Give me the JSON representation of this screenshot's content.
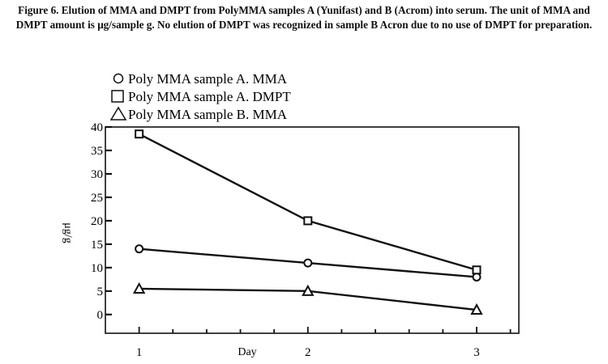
{
  "figure": {
    "caption": "Figure 6. Elution of MMA and DMPT from PolyMMA samples A (Yunifast) and B (Acrom) into serum. The unit of MMA and DMPT amount is μg/sample g. No elution of DMPT was recognized in sample B Acron due to no use of DMPT for preparation."
  },
  "chart_data": {
    "type": "line",
    "xlabel": "Day",
    "ylabel": "μg/g",
    "x": [
      1,
      2,
      3
    ],
    "x_ticks": [
      "1",
      "2",
      "3"
    ],
    "xlim": [
      0.8,
      3.25
    ],
    "ylim": [
      -4,
      40
    ],
    "y_ticks": [
      "0",
      "5",
      "10",
      "15",
      "20",
      "25",
      "30",
      "35",
      "40"
    ],
    "legend_position": "top-left",
    "grid": false,
    "series": [
      {
        "name": "Poly MMA sample A. MMA",
        "marker": "circle",
        "values": [
          14,
          11,
          8
        ]
      },
      {
        "name": "Poly MMA sample A. DMPT",
        "marker": "square",
        "values": [
          38.5,
          20,
          9.5
        ]
      },
      {
        "name": "Poly MMA sample B. MMA",
        "marker": "triangle",
        "values": [
          5.5,
          5,
          1
        ]
      }
    ]
  }
}
